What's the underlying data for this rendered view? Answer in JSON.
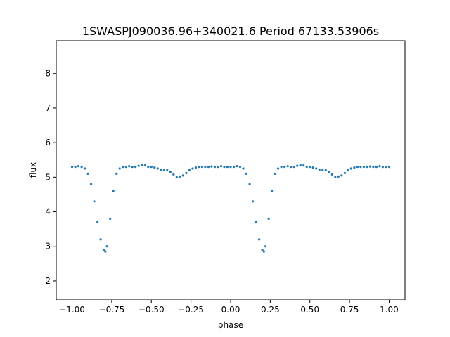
{
  "chart_data": {
    "type": "scatter",
    "title": "1SWASPJ090036.96+340021.6 Period 67133.53906s",
    "xlabel": "phase",
    "ylabel": "flux",
    "xlim": [
      -1.1,
      1.1
    ],
    "ylim": [
      1.45,
      8.95
    ],
    "xticks": [
      -1.0,
      -0.75,
      -0.5,
      -0.25,
      0.0,
      0.25,
      0.5,
      0.75,
      1.0
    ],
    "xtick_labels": [
      "−1.00",
      "−0.75",
      "−0.50",
      "−0.25",
      "0.00",
      "0.25",
      "0.50",
      "0.75",
      "1.00"
    ],
    "yticks": [
      2,
      3,
      4,
      5,
      6,
      7,
      8
    ],
    "ytick_labels": [
      "2",
      "3",
      "4",
      "5",
      "6",
      "7",
      "8"
    ],
    "grid": false,
    "legend": "none",
    "marker_color": "#1f77b4",
    "series": [
      {
        "x": [
          -1.0,
          -0.98,
          -0.96,
          -0.94,
          -0.92,
          -0.9,
          -0.88,
          -0.86,
          -0.84,
          -0.82,
          -0.8,
          -0.79,
          -0.78,
          -0.76,
          -0.74,
          -0.72,
          -0.7,
          -0.68,
          -0.66,
          -0.64,
          -0.62,
          -0.6,
          -0.58,
          -0.56,
          -0.54,
          -0.52,
          -0.5,
          -0.48,
          -0.46,
          -0.44,
          -0.42,
          -0.4,
          -0.38,
          -0.36,
          -0.34,
          -0.32,
          -0.3,
          -0.28,
          -0.26,
          -0.24,
          -0.22,
          -0.2,
          -0.18,
          -0.16,
          -0.14,
          -0.12,
          -0.1,
          -0.08,
          -0.06,
          -0.04,
          -0.02,
          0.0,
          0.02,
          0.04,
          0.06,
          0.08,
          0.1,
          0.12,
          0.14,
          0.16,
          0.18,
          0.2,
          0.21,
          0.22,
          0.24,
          0.26,
          0.28,
          0.3,
          0.32,
          0.34,
          0.36,
          0.38,
          0.4,
          0.42,
          0.44,
          0.46,
          0.48,
          0.5,
          0.52,
          0.54,
          0.56,
          0.58,
          0.6,
          0.62,
          0.64,
          0.66,
          0.68,
          0.7,
          0.72,
          0.74,
          0.76,
          0.78,
          0.8,
          0.82,
          0.84,
          0.86,
          0.88,
          0.9,
          0.92,
          0.94,
          0.96,
          0.98,
          1.0
        ],
        "y": [
          5.3,
          5.3,
          5.32,
          5.3,
          5.25,
          5.1,
          4.8,
          4.3,
          3.7,
          3.2,
          2.9,
          2.85,
          3.0,
          3.8,
          4.6,
          5.1,
          5.25,
          5.3,
          5.3,
          5.32,
          5.3,
          5.3,
          5.33,
          5.35,
          5.34,
          5.3,
          5.3,
          5.28,
          5.25,
          5.22,
          5.2,
          5.2,
          5.15,
          5.08,
          5.0,
          5.02,
          5.05,
          5.12,
          5.2,
          5.25,
          5.28,
          5.3,
          5.3,
          5.3,
          5.3,
          5.31,
          5.3,
          5.3,
          5.32,
          5.3,
          5.3,
          5.3,
          5.3,
          5.32,
          5.3,
          5.25,
          5.1,
          4.8,
          4.3,
          3.7,
          3.2,
          2.9,
          2.85,
          3.0,
          3.8,
          4.6,
          5.1,
          5.25,
          5.3,
          5.3,
          5.32,
          5.3,
          5.3,
          5.33,
          5.35,
          5.34,
          5.3,
          5.3,
          5.28,
          5.25,
          5.22,
          5.2,
          5.2,
          5.15,
          5.08,
          5.0,
          5.02,
          5.05,
          5.12,
          5.2,
          5.25,
          5.28,
          5.3,
          5.3,
          5.3,
          5.3,
          5.31,
          5.3,
          5.3,
          5.32,
          5.3,
          5.3,
          5.3
        ]
      }
    ]
  }
}
